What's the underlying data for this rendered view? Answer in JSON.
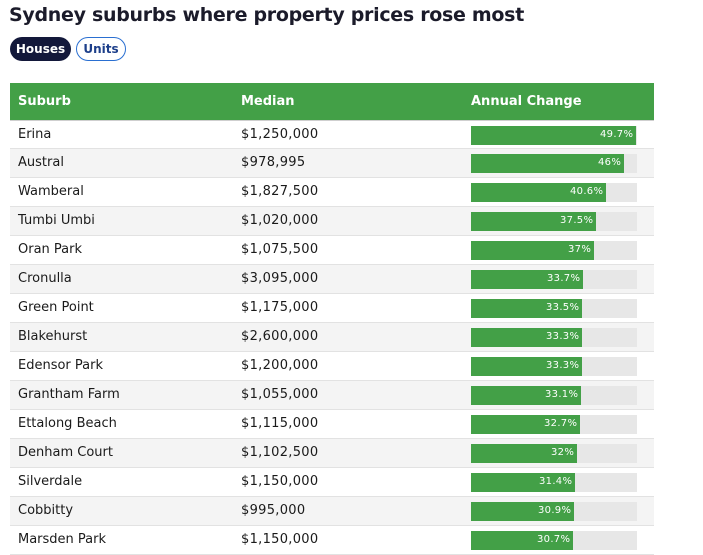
{
  "title": "Sydney suburbs where property prices rose most",
  "tabs": [
    {
      "label": "Houses",
      "active": true
    },
    {
      "label": "Units",
      "active": false
    }
  ],
  "colors": {
    "header_green": "#43a047",
    "bar_green": "#43a047",
    "track_gray": "#e7e7e7",
    "active_tab": "#13183a",
    "tab_border": "#2a6fd1"
  },
  "chart_data": {
    "type": "table",
    "columns": [
      "Suburb",
      "Median",
      "Annual Change"
    ],
    "bar_max": 50,
    "rows": [
      {
        "suburb": "Erina",
        "median": "$1,250,000",
        "change": 49.7,
        "change_label": "49.7%"
      },
      {
        "suburb": "Austral",
        "median": "$978,995",
        "change": 46,
        "change_label": "46%"
      },
      {
        "suburb": "Wamberal",
        "median": "$1,827,500",
        "change": 40.6,
        "change_label": "40.6%"
      },
      {
        "suburb": "Tumbi Umbi",
        "median": "$1,020,000",
        "change": 37.5,
        "change_label": "37.5%"
      },
      {
        "suburb": "Oran Park",
        "median": "$1,075,500",
        "change": 37,
        "change_label": "37%"
      },
      {
        "suburb": "Cronulla",
        "median": "$3,095,000",
        "change": 33.7,
        "change_label": "33.7%"
      },
      {
        "suburb": "Green Point",
        "median": "$1,175,000",
        "change": 33.5,
        "change_label": "33.5%"
      },
      {
        "suburb": "Blakehurst",
        "median": "$2,600,000",
        "change": 33.3,
        "change_label": "33.3%"
      },
      {
        "suburb": "Edensor Park",
        "median": "$1,200,000",
        "change": 33.3,
        "change_label": "33.3%"
      },
      {
        "suburb": "Grantham Farm",
        "median": "$1,055,000",
        "change": 33.1,
        "change_label": "33.1%"
      },
      {
        "suburb": "Ettalong Beach",
        "median": "$1,115,000",
        "change": 32.7,
        "change_label": "32.7%"
      },
      {
        "suburb": "Denham Court",
        "median": "$1,102,500",
        "change": 32,
        "change_label": "32%"
      },
      {
        "suburb": "Silverdale",
        "median": "$1,150,000",
        "change": 31.4,
        "change_label": "31.4%"
      },
      {
        "suburb": "Cobbitty",
        "median": "$995,000",
        "change": 30.9,
        "change_label": "30.9%"
      },
      {
        "suburb": "Marsden Park",
        "median": "$1,150,000",
        "change": 30.7,
        "change_label": "30.7%"
      }
    ]
  }
}
